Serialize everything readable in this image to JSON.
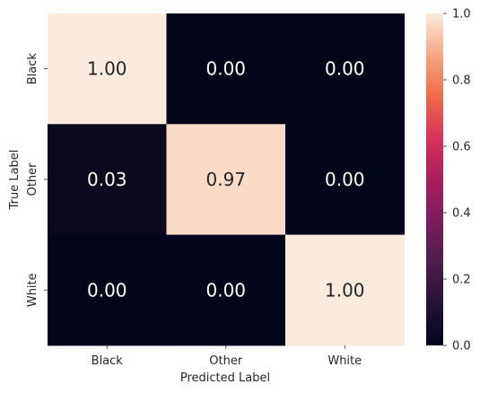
{
  "chart_data": {
    "type": "heatmap",
    "title": "",
    "xlabel": "Predicted Label",
    "ylabel": "True Label",
    "x_categories": [
      "Black",
      "Other",
      "White"
    ],
    "y_categories": [
      "Black",
      "Other",
      "White"
    ],
    "values": [
      [
        1.0,
        0.0,
        0.0
      ],
      [
        0.03,
        0.97,
        0.0
      ],
      [
        0.0,
        0.0,
        1.0
      ]
    ],
    "value_labels": [
      [
        "1.00",
        "0.00",
        "0.00"
      ],
      [
        "0.03",
        "0.97",
        "0.00"
      ],
      [
        "0.00",
        "0.00",
        "1.00"
      ]
    ],
    "colorbar": {
      "range": [
        0.0,
        1.0
      ],
      "ticks": [
        0.0,
        0.2,
        0.4,
        0.6,
        0.8,
        1.0
      ],
      "tick_labels": [
        "0.0",
        "0.2",
        "0.4",
        "0.6",
        "0.8",
        "1.0"
      ],
      "colormap": "rocket"
    }
  }
}
